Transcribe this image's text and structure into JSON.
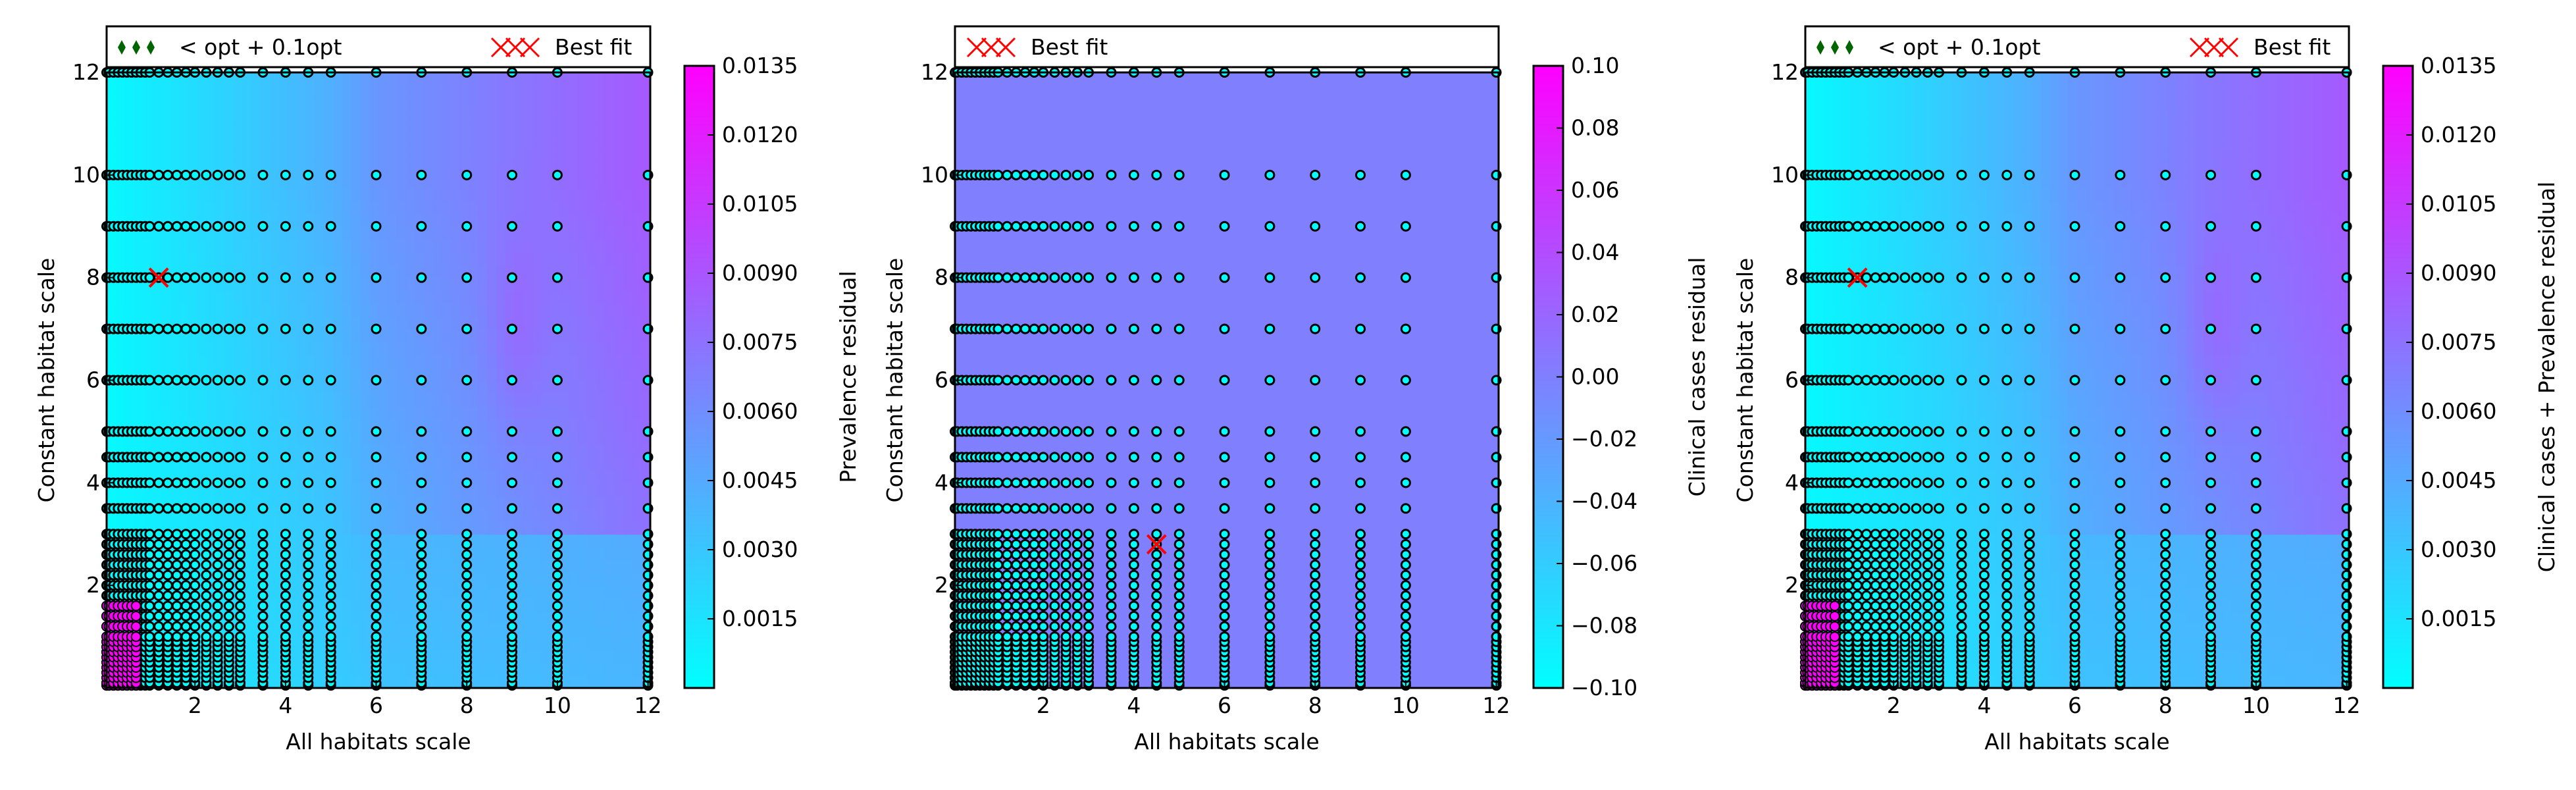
{
  "colors": {
    "cmap_low": "#00ffff",
    "cmap_high": "#ff00ff",
    "marker_fill": "#00ffff",
    "marker_edge": "#000000",
    "near_opt_marker": "#006400",
    "best_fit_marker": "#ff0000",
    "axes": "#000000",
    "background": "#ffffff"
  },
  "chart_data": [
    {
      "type": "heatmap",
      "xlabel": "All habitats scale",
      "ylabel": "Constant habitat scale",
      "xlim": [
        0.05,
        12.05
      ],
      "ylim": [
        0.0,
        12.0
      ],
      "xticks": [
        2,
        4,
        6,
        8,
        10,
        12
      ],
      "yticks": [
        2,
        4,
        6,
        8,
        10,
        12
      ],
      "grid": false,
      "legend_placement": "top",
      "legend": [
        {
          "marker": "diamond",
          "label": "< opt + 0.1opt"
        },
        {
          "marker": "x",
          "label": "Best fit"
        }
      ],
      "colorbar": {
        "label": "Prevalence residual",
        "range": [
          0.0,
          0.0135
        ],
        "tick_labels": [
          "0.0015",
          "0.0030",
          "0.0045",
          "0.0060",
          "0.0075",
          "0.0090",
          "0.0105",
          "0.0120",
          "0.0135"
        ]
      },
      "sample_grid": {
        "x": [
          0.05,
          0.1,
          0.2,
          0.3,
          0.4,
          0.5,
          0.6,
          0.7,
          0.8,
          0.9,
          1.0,
          1.2,
          1.4,
          1.6,
          1.8,
          2.0,
          2.25,
          2.5,
          2.75,
          3.0,
          3.5,
          4.0,
          4.5,
          5.0,
          6.0,
          7.0,
          8.0,
          9.0,
          10.0,
          12.0
        ],
        "y": [
          0.05,
          0.1,
          0.2,
          0.3,
          0.4,
          0.5,
          0.6,
          0.7,
          0.8,
          0.9,
          1.0,
          1.2,
          1.4,
          1.6,
          1.8,
          2.0,
          2.2,
          2.4,
          2.6,
          2.8,
          3.0,
          3.5,
          4.0,
          4.5,
          5.0,
          6.0,
          7.0,
          8.0,
          9.0,
          10.0,
          12.0
        ]
      },
      "near_optimal_region": {
        "x_max": 0.7,
        "y_max": 1.6
      },
      "best_fit": {
        "x": 1.2,
        "y": 8.0
      }
    },
    {
      "type": "heatmap",
      "xlabel": "All habitats scale",
      "ylabel": "Constant habitat scale",
      "xlim": [
        0.05,
        12.05
      ],
      "ylim": [
        0.0,
        12.0
      ],
      "xticks": [
        2,
        4,
        6,
        8,
        10,
        12
      ],
      "yticks": [
        2,
        4,
        6,
        8,
        10,
        12
      ],
      "grid": false,
      "legend_placement": "top",
      "legend": [
        {
          "marker": "x",
          "label": "Best fit"
        }
      ],
      "colorbar": {
        "label": "Clinical cases residual",
        "range": [
          -0.1,
          0.1
        ],
        "tick_labels": [
          "−0.10",
          "−0.08",
          "−0.06",
          "−0.04",
          "−0.02",
          "0.00",
          "0.02",
          "0.04",
          "0.06",
          "0.08",
          "0.10"
        ]
      },
      "sample_grid": {
        "x": [
          0.05,
          0.1,
          0.2,
          0.3,
          0.4,
          0.5,
          0.6,
          0.7,
          0.8,
          0.9,
          1.0,
          1.2,
          1.4,
          1.6,
          1.8,
          2.0,
          2.25,
          2.5,
          2.75,
          3.0,
          3.5,
          4.0,
          4.5,
          5.0,
          6.0,
          7.0,
          8.0,
          9.0,
          10.0,
          12.0
        ],
        "y": [
          0.05,
          0.1,
          0.2,
          0.3,
          0.4,
          0.5,
          0.6,
          0.7,
          0.8,
          0.9,
          1.0,
          1.2,
          1.4,
          1.6,
          1.8,
          2.0,
          2.2,
          2.4,
          2.6,
          2.8,
          3.0,
          3.5,
          4.0,
          4.5,
          5.0,
          6.0,
          7.0,
          8.0,
          9.0,
          10.0,
          12.0
        ]
      },
      "near_optimal_region": null,
      "best_fit": {
        "x": 4.5,
        "y": 2.8
      }
    },
    {
      "type": "heatmap",
      "xlabel": "All habitats scale",
      "ylabel": "Constant habitat scale",
      "xlim": [
        0.05,
        12.05
      ],
      "ylim": [
        0.0,
        12.0
      ],
      "xticks": [
        2,
        4,
        6,
        8,
        10,
        12
      ],
      "yticks": [
        2,
        4,
        6,
        8,
        10,
        12
      ],
      "grid": false,
      "legend_placement": "top",
      "legend": [
        {
          "marker": "diamond",
          "label": "< opt + 0.1opt"
        },
        {
          "marker": "x",
          "label": "Best fit"
        }
      ],
      "colorbar": {
        "label": "Clinical cases + Prevalence residual",
        "range": [
          0.0,
          0.0135
        ],
        "tick_labels": [
          "0.0015",
          "0.0030",
          "0.0045",
          "0.0060",
          "0.0075",
          "0.0090",
          "0.0105",
          "0.0120",
          "0.0135"
        ]
      },
      "sample_grid": {
        "x": [
          0.05,
          0.1,
          0.2,
          0.3,
          0.4,
          0.5,
          0.6,
          0.7,
          0.8,
          0.9,
          1.0,
          1.2,
          1.4,
          1.6,
          1.8,
          2.0,
          2.25,
          2.5,
          2.75,
          3.0,
          3.5,
          4.0,
          4.5,
          5.0,
          6.0,
          7.0,
          8.0,
          9.0,
          10.0,
          12.0
        ],
        "y": [
          0.05,
          0.1,
          0.2,
          0.3,
          0.4,
          0.5,
          0.6,
          0.7,
          0.8,
          0.9,
          1.0,
          1.2,
          1.4,
          1.6,
          1.8,
          2.0,
          2.2,
          2.4,
          2.6,
          2.8,
          3.0,
          3.5,
          4.0,
          4.5,
          5.0,
          6.0,
          7.0,
          8.0,
          9.0,
          10.0,
          12.0
        ]
      },
      "near_optimal_region": {
        "x_max": 0.7,
        "y_max": 1.6
      },
      "best_fit": {
        "x": 1.2,
        "y": 8.0
      }
    }
  ]
}
